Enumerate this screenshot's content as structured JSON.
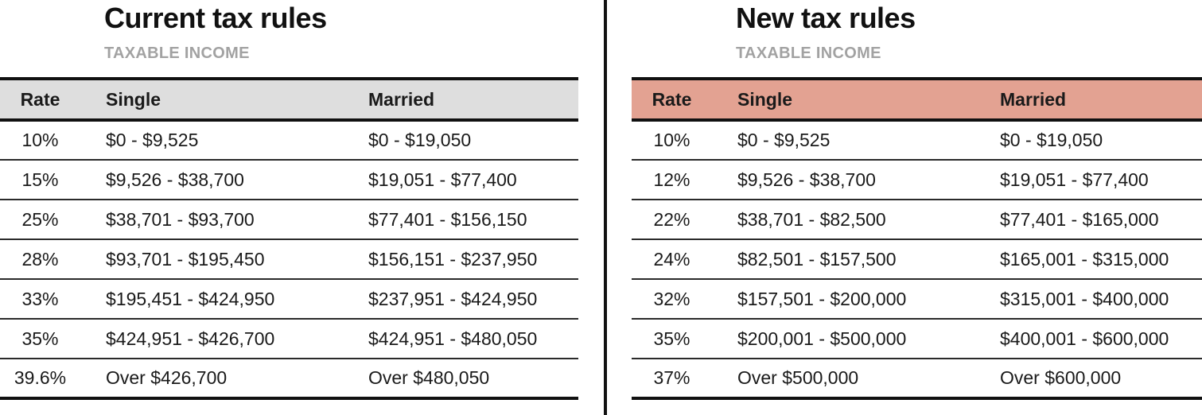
{
  "chart_data": [
    {
      "type": "table",
      "title": "Current tax rules",
      "subtitle": "TAXABLE INCOME",
      "header_bg": "#dedede",
      "columns": [
        "Rate",
        "Single",
        "Married"
      ],
      "rows": [
        [
          "10%",
          "$0 - $9,525",
          "$0 - $19,050"
        ],
        [
          "15%",
          "$9,526 - $38,700",
          "$19,051 - $77,400"
        ],
        [
          "25%",
          "$38,701 - $93,700",
          "$77,401 - $156,150"
        ],
        [
          "28%",
          "$93,701 - $195,450",
          "$156,151 - $237,950"
        ],
        [
          "33%",
          "$195,451 - $424,950",
          "$237,951 - $424,950"
        ],
        [
          "35%",
          "$424,951 - $426,700",
          "$424,951 - $480,050"
        ],
        [
          "39.6%",
          "Over $426,700",
          "Over $480,050"
        ]
      ]
    },
    {
      "type": "table",
      "title": "New tax rules",
      "subtitle": "TAXABLE INCOME",
      "header_bg": "#e3a292",
      "columns": [
        "Rate",
        "Single",
        "Married"
      ],
      "rows": [
        [
          "10%",
          "$0 - $9,525",
          "$0 - $19,050"
        ],
        [
          "12%",
          "$9,526 - $38,700",
          "$19,051 - $77,400"
        ],
        [
          "22%",
          "$38,701 - $82,500",
          "$77,401 - $165,000"
        ],
        [
          "24%",
          "$82,501 - $157,500",
          "$165,001 - $315,000"
        ],
        [
          "32%",
          "$157,501 - $200,000",
          "$315,001 - $400,000"
        ],
        [
          "35%",
          "$200,001 - $500,000",
          "$400,001 - $600,000"
        ],
        [
          "37%",
          "Over $500,000",
          "Over $600,000"
        ]
      ]
    }
  ]
}
